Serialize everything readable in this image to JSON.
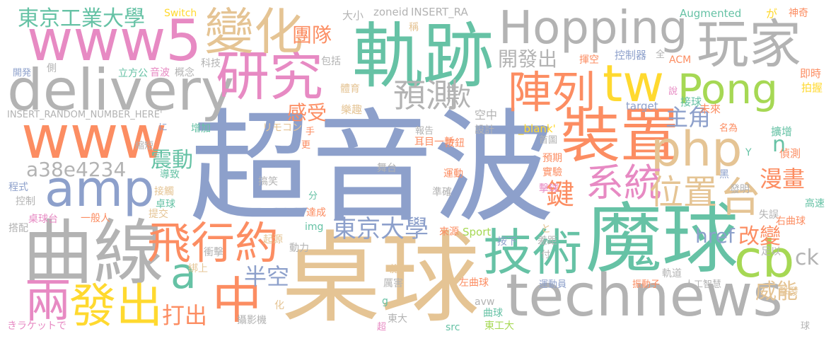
{
  "palette": {
    "blue": "#8da0cb",
    "gold": "#e5c494",
    "teal": "#66c2a5",
    "gray": "#b3b3b3",
    "orange": "#fc8d62",
    "pink": "#e78ac3",
    "green": "#a6d854",
    "yellow": "#ffd92f"
  },
  "words": [
    {
      "text": "超音波",
      "color": "blue"
    },
    {
      "text": "桌球",
      "color": "gold"
    },
    {
      "text": "魔球",
      "color": "teal"
    },
    {
      "text": "technews",
      "color": "gray"
    },
    {
      "text": "軌跡",
      "color": "teal"
    },
    {
      "text": "曲線",
      "color": "gray"
    },
    {
      "text": "Hopping",
      "color": "gray"
    },
    {
      "text": "delivery",
      "color": "gray"
    },
    {
      "text": "www5",
      "color": "pink"
    },
    {
      "text": "www",
      "color": "orange"
    },
    {
      "text": "裝置",
      "color": "orange"
    },
    {
      "text": "php",
      "color": "gold"
    },
    {
      "text": "cb",
      "color": "green"
    },
    {
      "text": "amp",
      "color": "blue"
    },
    {
      "text": "技術",
      "color": "teal"
    },
    {
      "text": "研究",
      "color": "pink"
    },
    {
      "text": "玩家",
      "color": "gray"
    },
    {
      "text": "變化",
      "color": "gold"
    },
    {
      "text": "Pong",
      "color": "green"
    },
    {
      "text": "tw",
      "color": "yellow"
    },
    {
      "text": "陣列",
      "color": "orange"
    },
    {
      "text": "發出",
      "color": "yellow"
    },
    {
      "text": "飛行約",
      "color": "orange"
    },
    {
      "text": "兩",
      "color": "pink"
    },
    {
      "text": "中",
      "color": "orange"
    },
    {
      "text": "a",
      "color": "teal"
    },
    {
      "text": "系統",
      "color": "pink"
    },
    {
      "text": "位置",
      "color": "gold"
    },
    {
      "text": "台",
      "color": "gold"
    },
    {
      "text": "預測",
      "color": "gray"
    },
    {
      "text": "東京大學",
      "color": "blue"
    },
    {
      "text": "a38e4234",
      "color": "gray"
    },
    {
      "text": "東京工業大學",
      "color": "teal"
    },
    {
      "text": "鍵",
      "color": "orange"
    },
    {
      "text": "款",
      "color": "gray"
    },
    {
      "text": "半空",
      "color": "blue"
    },
    {
      "text": "開發出",
      "color": "gray"
    },
    {
      "text": "團隊",
      "color": "orange"
    },
    {
      "text": "感受",
      "color": "orange"
    },
    {
      "text": "震動",
      "color": "teal"
    },
    {
      "text": "主角",
      "color": "blue"
    },
    {
      "text": "漫畫",
      "color": "orange"
    },
    {
      "text": "href",
      "color": "blue"
    },
    {
      "text": "改變",
      "color": "orange"
    },
    {
      "text": "威能",
      "color": "gold"
    },
    {
      "text": "打出",
      "color": "orange"
    },
    {
      "text": "ck",
      "color": "gray"
    },
    {
      "text": "n",
      "color": "teal"
    },
    {
      "text": "空中",
      "color": "gray"
    },
    {
      "text": "設計",
      "color": "gray"
    },
    {
      "text": "按鈕",
      "color": "orange"
    },
    {
      "text": "INSERT_RANDOM_NUMBER_HERE'",
      "color": "gray"
    },
    {
      "text": "INSERT_RA",
      "color": "gray"
    },
    {
      "text": "zoneid",
      "color": "gray"
    },
    {
      "text": "大小",
      "color": "gray"
    },
    {
      "text": "Switch",
      "color": "yellow"
    },
    {
      "text": "Augmented",
      "color": "teal"
    },
    {
      "text": "が",
      "color": "yellow"
    },
    {
      "text": "神奇",
      "color": "orange"
    },
    {
      "text": "稱",
      "color": "gold"
    },
    {
      "text": "包括",
      "color": "gray"
    },
    {
      "text": "揮空",
      "color": "orange"
    },
    {
      "text": "控制器",
      "color": "blue"
    },
    {
      "text": "全",
      "color": "gray"
    },
    {
      "text": "ACM",
      "color": "orange"
    },
    {
      "text": "即時",
      "color": "orange"
    },
    {
      "text": "拍握",
      "color": "yellow"
    },
    {
      "text": "開発",
      "color": "blue"
    },
    {
      "text": "側",
      "color": "gray"
    },
    {
      "text": "立方公",
      "color": "teal"
    },
    {
      "text": "音波",
      "color": "pink"
    },
    {
      "text": "概念",
      "color": "gray"
    },
    {
      "text": "科技",
      "color": "gray"
    },
    {
      "text": "體育",
      "color": "gold"
    },
    {
      "text": "接球",
      "color": "teal"
    },
    {
      "text": "target",
      "color": "blue"
    },
    {
      "text": "說",
      "color": "pink"
    },
    {
      "text": "未來",
      "color": "orange"
    },
    {
      "text": "增加",
      "color": "teal"
    },
    {
      "text": "リモコン",
      "color": "gold"
    },
    {
      "text": "樂趣",
      "color": "gold"
    },
    {
      "text": "報告",
      "color": "gray"
    },
    {
      "text": "首圖",
      "color": "gray"
    },
    {
      "text": "名為",
      "color": "orange"
    },
    {
      "text": "擴增",
      "color": "teal"
    },
    {
      "text": "に",
      "color": "blue"
    },
    {
      "text": "縮短",
      "color": "gray"
    },
    {
      "text": "手",
      "color": "orange"
    },
    {
      "text": "更",
      "color": "orange"
    },
    {
      "text": "耳目一新",
      "color": "orange"
    },
    {
      "text": "_blank'",
      "color": "yellow"
    },
    {
      "text": "偵測",
      "color": "orange"
    },
    {
      "text": "Y",
      "color": "teal"
    },
    {
      "text": "導致",
      "color": "teal"
    },
    {
      "text": "舞台",
      "color": "gray"
    },
    {
      "text": "預期",
      "color": "orange"
    },
    {
      "text": "實驗",
      "color": "orange"
    },
    {
      "text": "黑",
      "color": "blue"
    },
    {
      "text": "發明",
      "color": "gray"
    },
    {
      "text": "程式",
      "color": "blue"
    },
    {
      "text": "接觸",
      "color": "gold"
    },
    {
      "text": "搞笑",
      "color": "gray"
    },
    {
      "text": "運動",
      "color": "orange"
    },
    {
      "text": "準確",
      "color": "gray"
    },
    {
      "text": "擊球",
      "color": "pink"
    },
    {
      "text": "控制",
      "color": "gray"
    },
    {
      "text": "卓球",
      "color": "teal"
    },
    {
      "text": "分",
      "color": "teal"
    },
    {
      "text": "高速",
      "color": "teal"
    },
    {
      "text": "桌球台",
      "color": "pink"
    },
    {
      "text": "一般人",
      "color": "orange"
    },
    {
      "text": "提交",
      "color": "gold"
    },
    {
      "text": "達成",
      "color": "orange"
    },
    {
      "text": "失誤",
      "color": "gray"
    },
    {
      "text": "右曲球",
      "color": "orange"
    },
    {
      "text": "搭配",
      "color": "gray"
    },
    {
      "text": "img",
      "color": "teal"
    },
    {
      "text": "起源",
      "color": "gold"
    },
    {
      "text": "來源",
      "color": "orange"
    },
    {
      "text": "Sport",
      "color": "green"
    },
    {
      "text": "按下",
      "color": "blue"
    },
    {
      "text": "と",
      "color": "gold"
    },
    {
      "text": "差距",
      "color": "gray"
    },
    {
      "text": "付",
      "color": "gray"
    },
    {
      "text": "動力",
      "color": "gray"
    },
    {
      "text": "足以",
      "color": "gray"
    },
    {
      "text": "衝擊",
      "color": "gray"
    },
    {
      "text": "施",
      "color": "gold"
    },
    {
      "text": "軌道",
      "color": "gray"
    },
    {
      "text": "綁上",
      "color": "gold"
    },
    {
      "text": "厲害",
      "color": "gray"
    },
    {
      "text": "左曲球",
      "color": "orange"
    },
    {
      "text": "運動員",
      "color": "blue"
    },
    {
      "text": "振動子",
      "color": "orange"
    },
    {
      "text": "人工智慧",
      "color": "gray"
    },
    {
      "text": "擊發",
      "color": "gold"
    },
    {
      "text": "g",
      "color": "teal"
    },
    {
      "text": "avw",
      "color": "gray"
    },
    {
      "text": "化",
      "color": "gold"
    },
    {
      "text": "曲球",
      "color": "teal"
    },
    {
      "text": "東大",
      "color": "gray"
    },
    {
      "text": "きラケットで",
      "color": "pink"
    },
    {
      "text": "攝影機",
      "color": "gray"
    },
    {
      "text": "超",
      "color": "pink"
    },
    {
      "text": "src",
      "color": "teal"
    },
    {
      "text": "東工大",
      "color": "green"
    },
    {
      "text": "球",
      "color": "gray"
    }
  ]
}
